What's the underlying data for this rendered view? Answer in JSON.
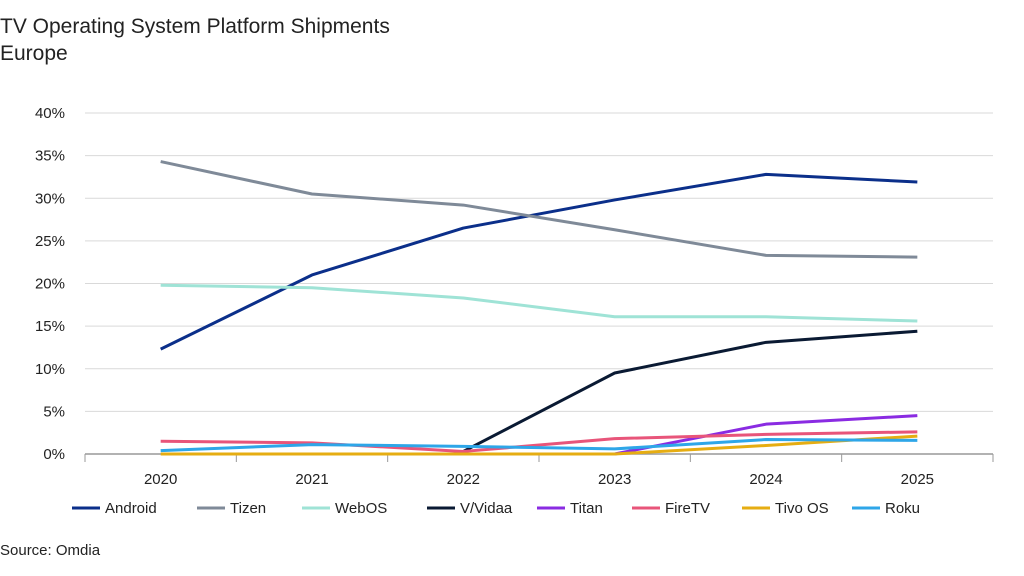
{
  "chart_data": {
    "type": "line",
    "title": "TV Operating System Platform Shipments",
    "subtitle": "Europe",
    "source": "Source: Omdia",
    "categories": [
      "2020",
      "2021",
      "2022",
      "2023",
      "2024",
      "2025"
    ],
    "ylim": [
      0,
      40
    ],
    "yticks": [
      "0%",
      "5%",
      "10%",
      "15%",
      "20%",
      "25%",
      "30%",
      "35%",
      "40%"
    ],
    "grid": true,
    "legend": "bottom",
    "series": [
      {
        "name": "Android",
        "color": "#0b2f8a",
        "values": [
          12.3,
          21.0,
          26.5,
          29.8,
          32.8,
          31.9
        ]
      },
      {
        "name": "Tizen",
        "color": "#7f8a98",
        "values": [
          34.3,
          30.5,
          29.2,
          26.3,
          23.3,
          23.1
        ]
      },
      {
        "name": "WebOS",
        "color": "#9fe3d6",
        "values": [
          19.8,
          19.5,
          18.3,
          16.1,
          16.1,
          15.6
        ]
      },
      {
        "name": "V/Vidaa",
        "color": "#0a1a33",
        "values": [
          null,
          null,
          0.3,
          9.5,
          13.1,
          14.4
        ]
      },
      {
        "name": "Titan",
        "color": "#8a2be2",
        "values": [
          null,
          null,
          null,
          0.0,
          3.5,
          4.5
        ]
      },
      {
        "name": "FireTV",
        "color": "#e8557a",
        "values": [
          1.5,
          1.3,
          0.3,
          1.8,
          2.3,
          2.6
        ]
      },
      {
        "name": "Tivo OS",
        "color": "#e6ad12",
        "values": [
          0.0,
          0.0,
          0.0,
          0.0,
          1.0,
          2.1
        ]
      },
      {
        "name": "Roku",
        "color": "#2ea6e8",
        "values": [
          0.4,
          1.1,
          0.9,
          0.6,
          1.7,
          1.6
        ]
      }
    ]
  }
}
